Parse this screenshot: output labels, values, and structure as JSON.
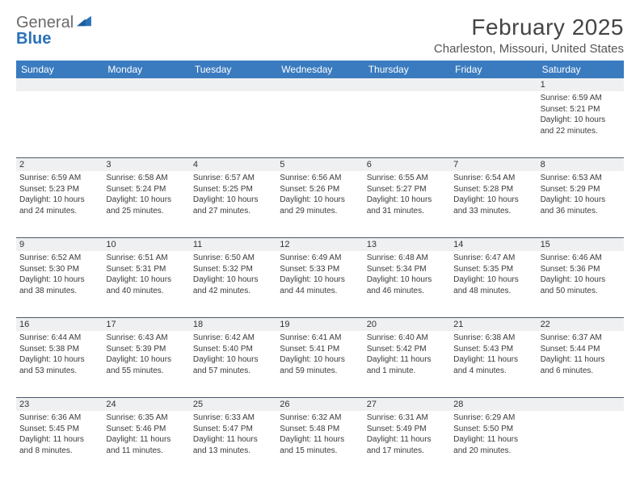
{
  "brand": {
    "word1": "General",
    "word2": "Blue",
    "icon_color": "#2a71b8"
  },
  "title": "February 2025",
  "location": "Charleston, Missouri, United States",
  "colors": {
    "header_bg": "#3a7bbf",
    "header_text": "#ffffff",
    "daynum_bg": "#eef0f1",
    "rule": "#4a5a6a",
    "body_text": "#3a3a3a"
  },
  "weekdays": [
    "Sunday",
    "Monday",
    "Tuesday",
    "Wednesday",
    "Thursday",
    "Friday",
    "Saturday"
  ],
  "weeks": [
    [
      {
        "n": "",
        "lines": []
      },
      {
        "n": "",
        "lines": []
      },
      {
        "n": "",
        "lines": []
      },
      {
        "n": "",
        "lines": []
      },
      {
        "n": "",
        "lines": []
      },
      {
        "n": "",
        "lines": []
      },
      {
        "n": "1",
        "lines": [
          "Sunrise: 6:59 AM",
          "Sunset: 5:21 PM",
          "Daylight: 10 hours",
          "and 22 minutes."
        ]
      }
    ],
    [
      {
        "n": "2",
        "lines": [
          "Sunrise: 6:59 AM",
          "Sunset: 5:23 PM",
          "Daylight: 10 hours",
          "and 24 minutes."
        ]
      },
      {
        "n": "3",
        "lines": [
          "Sunrise: 6:58 AM",
          "Sunset: 5:24 PM",
          "Daylight: 10 hours",
          "and 25 minutes."
        ]
      },
      {
        "n": "4",
        "lines": [
          "Sunrise: 6:57 AM",
          "Sunset: 5:25 PM",
          "Daylight: 10 hours",
          "and 27 minutes."
        ]
      },
      {
        "n": "5",
        "lines": [
          "Sunrise: 6:56 AM",
          "Sunset: 5:26 PM",
          "Daylight: 10 hours",
          "and 29 minutes."
        ]
      },
      {
        "n": "6",
        "lines": [
          "Sunrise: 6:55 AM",
          "Sunset: 5:27 PM",
          "Daylight: 10 hours",
          "and 31 minutes."
        ]
      },
      {
        "n": "7",
        "lines": [
          "Sunrise: 6:54 AM",
          "Sunset: 5:28 PM",
          "Daylight: 10 hours",
          "and 33 minutes."
        ]
      },
      {
        "n": "8",
        "lines": [
          "Sunrise: 6:53 AM",
          "Sunset: 5:29 PM",
          "Daylight: 10 hours",
          "and 36 minutes."
        ]
      }
    ],
    [
      {
        "n": "9",
        "lines": [
          "Sunrise: 6:52 AM",
          "Sunset: 5:30 PM",
          "Daylight: 10 hours",
          "and 38 minutes."
        ]
      },
      {
        "n": "10",
        "lines": [
          "Sunrise: 6:51 AM",
          "Sunset: 5:31 PM",
          "Daylight: 10 hours",
          "and 40 minutes."
        ]
      },
      {
        "n": "11",
        "lines": [
          "Sunrise: 6:50 AM",
          "Sunset: 5:32 PM",
          "Daylight: 10 hours",
          "and 42 minutes."
        ]
      },
      {
        "n": "12",
        "lines": [
          "Sunrise: 6:49 AM",
          "Sunset: 5:33 PM",
          "Daylight: 10 hours",
          "and 44 minutes."
        ]
      },
      {
        "n": "13",
        "lines": [
          "Sunrise: 6:48 AM",
          "Sunset: 5:34 PM",
          "Daylight: 10 hours",
          "and 46 minutes."
        ]
      },
      {
        "n": "14",
        "lines": [
          "Sunrise: 6:47 AM",
          "Sunset: 5:35 PM",
          "Daylight: 10 hours",
          "and 48 minutes."
        ]
      },
      {
        "n": "15",
        "lines": [
          "Sunrise: 6:46 AM",
          "Sunset: 5:36 PM",
          "Daylight: 10 hours",
          "and 50 minutes."
        ]
      }
    ],
    [
      {
        "n": "16",
        "lines": [
          "Sunrise: 6:44 AM",
          "Sunset: 5:38 PM",
          "Daylight: 10 hours",
          "and 53 minutes."
        ]
      },
      {
        "n": "17",
        "lines": [
          "Sunrise: 6:43 AM",
          "Sunset: 5:39 PM",
          "Daylight: 10 hours",
          "and 55 minutes."
        ]
      },
      {
        "n": "18",
        "lines": [
          "Sunrise: 6:42 AM",
          "Sunset: 5:40 PM",
          "Daylight: 10 hours",
          "and 57 minutes."
        ]
      },
      {
        "n": "19",
        "lines": [
          "Sunrise: 6:41 AM",
          "Sunset: 5:41 PM",
          "Daylight: 10 hours",
          "and 59 minutes."
        ]
      },
      {
        "n": "20",
        "lines": [
          "Sunrise: 6:40 AM",
          "Sunset: 5:42 PM",
          "Daylight: 11 hours",
          "and 1 minute."
        ]
      },
      {
        "n": "21",
        "lines": [
          "Sunrise: 6:38 AM",
          "Sunset: 5:43 PM",
          "Daylight: 11 hours",
          "and 4 minutes."
        ]
      },
      {
        "n": "22",
        "lines": [
          "Sunrise: 6:37 AM",
          "Sunset: 5:44 PM",
          "Daylight: 11 hours",
          "and 6 minutes."
        ]
      }
    ],
    [
      {
        "n": "23",
        "lines": [
          "Sunrise: 6:36 AM",
          "Sunset: 5:45 PM",
          "Daylight: 11 hours",
          "and 8 minutes."
        ]
      },
      {
        "n": "24",
        "lines": [
          "Sunrise: 6:35 AM",
          "Sunset: 5:46 PM",
          "Daylight: 11 hours",
          "and 11 minutes."
        ]
      },
      {
        "n": "25",
        "lines": [
          "Sunrise: 6:33 AM",
          "Sunset: 5:47 PM",
          "Daylight: 11 hours",
          "and 13 minutes."
        ]
      },
      {
        "n": "26",
        "lines": [
          "Sunrise: 6:32 AM",
          "Sunset: 5:48 PM",
          "Daylight: 11 hours",
          "and 15 minutes."
        ]
      },
      {
        "n": "27",
        "lines": [
          "Sunrise: 6:31 AM",
          "Sunset: 5:49 PM",
          "Daylight: 11 hours",
          "and 17 minutes."
        ]
      },
      {
        "n": "28",
        "lines": [
          "Sunrise: 6:29 AM",
          "Sunset: 5:50 PM",
          "Daylight: 11 hours",
          "and 20 minutes."
        ]
      },
      {
        "n": "",
        "lines": []
      }
    ]
  ]
}
